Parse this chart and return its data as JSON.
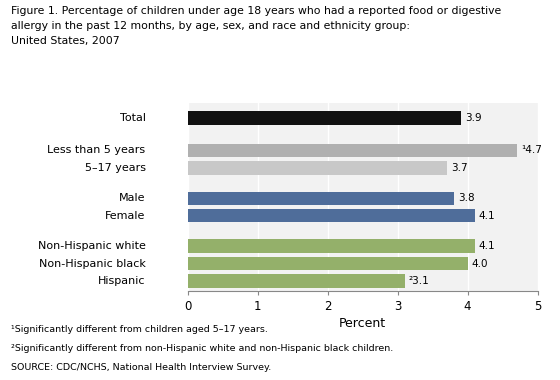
{
  "title_lines": [
    "Figure 1. Percentage of children under age 18 years who had a reported food or digestive",
    "allergy in the past 12 months, by age, sex, and race and ethnicity group:",
    "United States, 2007"
  ],
  "categories": [
    "Total",
    "Less than 5 years",
    "5–17 years",
    "Male",
    "Female",
    "Non-Hispanic white",
    "Non-Hispanic black",
    "Hispanic"
  ],
  "values": [
    3.9,
    4.7,
    3.7,
    3.8,
    4.1,
    4.1,
    4.0,
    3.1
  ],
  "colors": [
    "#111111",
    "#b0b0b0",
    "#c8c8c8",
    "#4f6d9a",
    "#4f6d9a",
    "#94b06a",
    "#94b06a",
    "#94b06a"
  ],
  "bar_labels": [
    "3.9",
    "¹4.7",
    "3.7",
    "3.8",
    "4.1",
    "4.1",
    "4.0",
    "²3.1"
  ],
  "xlabel": "Percent",
  "xlim": [
    0,
    5
  ],
  "xticks": [
    0,
    1,
    2,
    3,
    4,
    5
  ],
  "footnotes": [
    "¹Significantly different from children aged 5–17 years.",
    "²Significantly different from non-Hispanic white and non-Hispanic black children.",
    "SOURCE: CDC/NCHS, National Health Interview Survey."
  ],
  "bg_color": "#ffffff",
  "plot_bg_color": "#f2f2f2",
  "figsize": [
    5.6,
    3.8
  ],
  "dpi": 100
}
